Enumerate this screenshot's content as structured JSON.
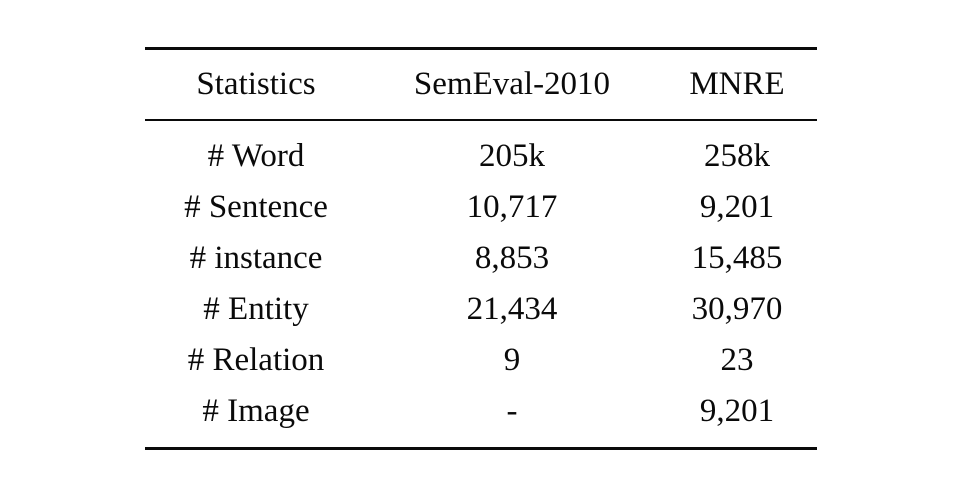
{
  "table": {
    "columns": [
      "Statistics",
      "SemEval-2010",
      "MNRE"
    ],
    "rows": [
      {
        "label": "# Word",
        "semeval": "205k",
        "mnre": "258k"
      },
      {
        "label": "# Sentence",
        "semeval": "10,717",
        "mnre": "9,201"
      },
      {
        "label": "# instance",
        "semeval": "8,853",
        "mnre": "15,485"
      },
      {
        "label": "# Entity",
        "semeval": "21,434",
        "mnre": "30,970"
      },
      {
        "label": "# Relation",
        "semeval": "9",
        "mnre": "23"
      },
      {
        "label": "# Image",
        "semeval": "-",
        "mnre": "9,201"
      }
    ]
  },
  "colors": {
    "text": "#0a0a0a",
    "background": "#ffffff",
    "rule": "#0a0a0a"
  }
}
